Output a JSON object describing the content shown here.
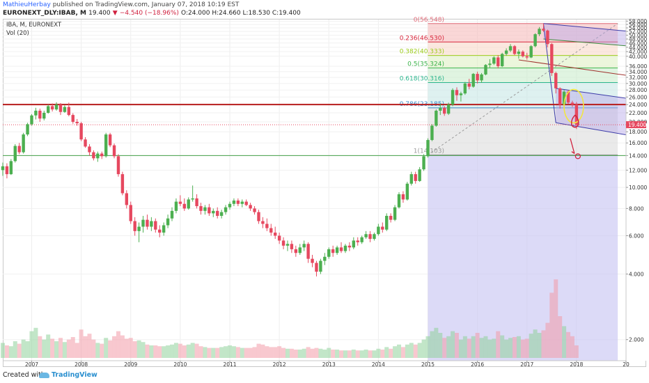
{
  "header": {
    "author": "MathieuHerbay",
    "published_text": "published on TradingView.com, January 07, 2018 10:19 EST",
    "symbol": "EURONEXT_DLY:IBAB, M",
    "last": "19.400",
    "change_arrow": "▼",
    "change": "−4.540 (−18.96%)",
    "ohlc": "O:24.000 H:24.660 L:18.530 C:19.400"
  },
  "legend": {
    "title": "IBA, M, EURONEXT",
    "volume": "Vol (20)"
  },
  "footer": {
    "created_with": "Created with",
    "brand": "TradingView"
  },
  "colors": {
    "up": "#4caf50",
    "down": "#e6485f",
    "resistance": "#b71c1c",
    "support": "#43a047",
    "price_tag": "#e6485f",
    "annotation_yellow": "#f2e640",
    "annotation_red": "#d01f3c"
  },
  "chart_data": {
    "type": "candlestick",
    "title": "IBA, M, EURONEXT",
    "y_scale": "log",
    "ylim": [
      1.6,
      59
    ],
    "x_range": [
      "2006-06",
      "2019-01"
    ],
    "y_ticks": [
      "58.000",
      "56.000",
      "54.000",
      "52.000",
      "50.000",
      "48.000",
      "46.000",
      "44.000",
      "42.000",
      "40.000",
      "36.000",
      "34.000",
      "32.000",
      "30.000",
      "28.000",
      "26.000",
      "24.000",
      "22.000",
      "20.000",
      "18.000",
      "16.000",
      "14.000",
      "12.000",
      "10.000",
      "8.000",
      "6.000",
      "4.000",
      "2.000"
    ],
    "x_ticks": [
      "2007",
      "2008",
      "2009",
      "2010",
      "2011",
      "2012",
      "2013",
      "2014",
      "2015",
      "2016",
      "2017",
      "2018",
      "20"
    ],
    "last_price_label": "19.400",
    "horizontal_lines": [
      {
        "name": "resistance",
        "value": 24
      },
      {
        "name": "support",
        "value": 14
      },
      {
        "name": "last",
        "value": 19.4
      }
    ],
    "fibonacci": {
      "from": "2015-01",
      "to": "2018-11",
      "levels": [
        {
          "label": "0(56.548)",
          "value": 56.548,
          "color": "#e06b78"
        },
        {
          "label": "0.236(46.530)",
          "value": 46.53,
          "color": "#d9263c"
        },
        {
          "label": "0.382(40.333)",
          "value": 40.333,
          "color": "#9ccc1a"
        },
        {
          "label": "0.5(35.324)",
          "value": 35.324,
          "color": "#3bb34a"
        },
        {
          "label": "0.618(30.316)",
          "value": 30.316,
          "color": "#2bb58d"
        },
        {
          "label": "0.786(23.185)",
          "value": 23.185,
          "color": "#3a87c6"
        },
        {
          "label": "1(14.103)",
          "value": 14.103,
          "color": "#9a9a9a"
        }
      ]
    },
    "ohlc": [
      [
        "2006-06",
        12.0,
        13.0,
        11.3,
        12.5,
        1.8
      ],
      [
        "2006-07",
        12.5,
        12.9,
        11.0,
        11.5,
        1.5
      ],
      [
        "2006-08",
        11.5,
        13.5,
        11.4,
        13.2,
        1.4
      ],
      [
        "2006-09",
        13.2,
        15.8,
        13.0,
        15.5,
        2.0
      ],
      [
        "2006-10",
        15.5,
        16.0,
        14.2,
        14.5,
        1.7
      ],
      [
        "2006-11",
        14.5,
        17.8,
        14.3,
        17.5,
        2.2
      ],
      [
        "2006-12",
        17.5,
        19.8,
        17.2,
        19.5,
        2.0
      ],
      [
        "2007-01",
        19.5,
        21.7,
        19.2,
        21.4,
        3.2
      ],
      [
        "2007-02",
        21.4,
        23.2,
        20.5,
        22.5,
        3.6
      ],
      [
        "2007-03",
        22.5,
        23.0,
        20.0,
        20.7,
        2.6
      ],
      [
        "2007-04",
        20.7,
        22.5,
        20.3,
        22.0,
        2.2
      ],
      [
        "2007-05",
        22.0,
        24.0,
        21.8,
        23.6,
        2.8
      ],
      [
        "2007-06",
        23.6,
        24.3,
        22.3,
        22.8,
        2.3
      ],
      [
        "2007-07",
        22.8,
        24.6,
        22.5,
        24.0,
        2.0
      ],
      [
        "2007-08",
        24.0,
        24.4,
        21.5,
        22.2,
        2.4
      ],
      [
        "2007-09",
        22.2,
        23.8,
        22.0,
        23.4,
        1.9
      ],
      [
        "2007-10",
        23.4,
        24.5,
        21.2,
        21.5,
        2.2
      ],
      [
        "2007-11",
        21.5,
        21.9,
        19.6,
        20.0,
        2.5
      ],
      [
        "2007-12",
        20.0,
        20.6,
        19.2,
        19.7,
        1.8
      ],
      [
        "2008-01",
        19.7,
        20.0,
        16.3,
        16.6,
        3.4
      ],
      [
        "2008-02",
        16.6,
        17.0,
        15.2,
        15.4,
        2.6
      ],
      [
        "2008-03",
        15.4,
        15.8,
        14.0,
        14.5,
        2.9
      ],
      [
        "2008-04",
        14.5,
        14.8,
        13.3,
        13.6,
        2.2
      ],
      [
        "2008-05",
        13.6,
        14.6,
        13.1,
        14.3,
        1.8
      ],
      [
        "2008-06",
        14.3,
        14.6,
        13.5,
        13.9,
        1.7
      ],
      [
        "2008-07",
        13.9,
        17.8,
        13.7,
        17.5,
        2.4
      ],
      [
        "2008-08",
        17.5,
        17.8,
        15.3,
        15.6,
        2.1
      ],
      [
        "2008-09",
        15.6,
        15.9,
        13.6,
        13.9,
        2.6
      ],
      [
        "2008-10",
        13.9,
        14.2,
        11.2,
        11.5,
        3.2
      ],
      [
        "2008-11",
        11.5,
        11.8,
        9.2,
        9.4,
        2.7
      ],
      [
        "2008-12",
        9.4,
        9.7,
        8.0,
        8.3,
        2.3
      ],
      [
        "2009-01",
        8.3,
        8.6,
        6.8,
        7.0,
        2.4
      ],
      [
        "2009-02",
        7.0,
        7.3,
        6.0,
        6.3,
        2.0
      ],
      [
        "2009-03",
        6.3,
        6.9,
        5.6,
        6.6,
        2.1
      ],
      [
        "2009-04",
        6.6,
        7.4,
        6.2,
        7.1,
        1.9
      ],
      [
        "2009-05",
        7.1,
        7.5,
        6.4,
        6.6,
        1.6
      ],
      [
        "2009-06",
        6.6,
        7.3,
        6.3,
        7.0,
        1.5
      ],
      [
        "2009-07",
        7.0,
        7.2,
        6.2,
        6.4,
        1.5
      ],
      [
        "2009-08",
        6.4,
        6.7,
        5.9,
        6.2,
        1.4
      ],
      [
        "2009-09",
        6.2,
        6.9,
        6.0,
        6.7,
        1.4
      ],
      [
        "2009-10",
        6.7,
        7.5,
        6.5,
        7.2,
        1.5
      ],
      [
        "2009-11",
        7.2,
        8.1,
        7.0,
        7.8,
        1.6
      ],
      [
        "2009-12",
        7.8,
        8.9,
        7.6,
        8.6,
        1.8
      ],
      [
        "2010-01",
        8.6,
        9.2,
        8.2,
        8.4,
        1.7
      ],
      [
        "2010-02",
        8.4,
        8.9,
        7.8,
        8.0,
        1.5
      ],
      [
        "2010-03",
        8.0,
        9.0,
        7.9,
        8.8,
        1.6
      ],
      [
        "2010-04",
        8.8,
        10.2,
        8.6,
        8.9,
        1.8
      ],
      [
        "2010-05",
        8.9,
        9.3,
        8.0,
        8.2,
        1.7
      ],
      [
        "2010-06",
        8.2,
        8.5,
        7.5,
        7.8,
        1.4
      ],
      [
        "2010-07",
        7.8,
        8.3,
        7.5,
        8.1,
        1.3
      ],
      [
        "2010-08",
        8.1,
        8.4,
        7.4,
        7.6,
        1.2
      ],
      [
        "2010-09",
        7.6,
        8.0,
        7.3,
        7.8,
        1.2
      ],
      [
        "2010-10",
        7.8,
        8.1,
        7.2,
        7.4,
        1.2
      ],
      [
        "2010-11",
        7.4,
        7.9,
        7.2,
        7.7,
        1.3
      ],
      [
        "2010-12",
        7.7,
        8.3,
        7.5,
        8.1,
        1.4
      ],
      [
        "2011-01",
        8.1,
        8.6,
        7.9,
        8.4,
        1.5
      ],
      [
        "2011-02",
        8.4,
        8.9,
        8.2,
        8.7,
        1.4
      ],
      [
        "2011-03",
        8.7,
        8.9,
        8.2,
        8.4,
        1.3
      ],
      [
        "2011-04",
        8.4,
        8.8,
        8.1,
        8.6,
        1.2
      ],
      [
        "2011-05",
        8.6,
        8.8,
        8.2,
        8.3,
        1.2
      ],
      [
        "2011-06",
        8.3,
        8.5,
        7.8,
        8.0,
        1.2
      ],
      [
        "2011-07",
        8.0,
        8.2,
        7.5,
        7.7,
        1.3
      ],
      [
        "2011-08",
        7.7,
        7.9,
        6.8,
        7.0,
        1.7
      ],
      [
        "2011-09",
        7.0,
        7.3,
        6.5,
        6.8,
        1.6
      ],
      [
        "2011-10",
        6.8,
        7.2,
        6.3,
        6.5,
        1.4
      ],
      [
        "2011-11",
        6.5,
        6.8,
        6.0,
        6.2,
        1.3
      ],
      [
        "2011-12",
        6.2,
        6.6,
        5.8,
        6.0,
        1.3
      ],
      [
        "2012-01",
        6.0,
        6.2,
        5.5,
        5.7,
        1.4
      ],
      [
        "2012-02",
        5.7,
        5.9,
        5.2,
        5.4,
        1.2
      ],
      [
        "2012-03",
        5.4,
        5.7,
        5.1,
        5.5,
        1.1
      ],
      [
        "2012-04",
        5.5,
        5.7,
        5.0,
        5.2,
        1.1
      ],
      [
        "2012-05",
        5.2,
        5.4,
        4.8,
        5.0,
        1.0
      ],
      [
        "2012-06",
        5.0,
        5.5,
        4.9,
        5.3,
        1.0
      ],
      [
        "2012-07",
        5.3,
        5.7,
        5.1,
        5.5,
        1.1
      ],
      [
        "2012-08",
        5.5,
        5.6,
        4.5,
        4.7,
        1.3
      ],
      [
        "2012-09",
        4.7,
        4.9,
        4.3,
        4.5,
        1.1
      ],
      [
        "2012-10",
        4.5,
        4.6,
        3.9,
        4.1,
        1.2
      ],
      [
        "2012-11",
        4.1,
        4.7,
        4.0,
        4.6,
        1.1
      ],
      [
        "2012-12",
        4.6,
        5.0,
        4.4,
        4.8,
        1.0
      ],
      [
        "2013-01",
        4.8,
        5.3,
        4.7,
        5.2,
        1.2
      ],
      [
        "2013-02",
        5.2,
        5.4,
        4.8,
        5.0,
        1.0
      ],
      [
        "2013-03",
        5.0,
        5.4,
        4.9,
        5.3,
        1.0
      ],
      [
        "2013-04",
        5.3,
        5.6,
        5.0,
        5.1,
        0.9
      ],
      [
        "2013-05",
        5.1,
        5.5,
        5.0,
        5.4,
        0.9
      ],
      [
        "2013-06",
        5.4,
        5.6,
        5.1,
        5.3,
        0.9
      ],
      [
        "2013-07",
        5.3,
        5.9,
        5.2,
        5.7,
        1.0
      ],
      [
        "2013-08",
        5.7,
        5.9,
        5.4,
        5.6,
        0.9
      ],
      [
        "2013-09",
        5.6,
        6.0,
        5.5,
        5.9,
        0.9
      ],
      [
        "2013-10",
        5.9,
        6.3,
        5.8,
        6.1,
        1.0
      ],
      [
        "2013-11",
        6.1,
        6.3,
        5.6,
        5.8,
        0.9
      ],
      [
        "2013-12",
        5.8,
        6.2,
        5.7,
        6.1,
        0.9
      ],
      [
        "2014-01",
        6.1,
        6.8,
        6.0,
        6.6,
        1.1
      ],
      [
        "2014-02",
        6.6,
        6.9,
        6.2,
        6.4,
        1.0
      ],
      [
        "2014-03",
        6.4,
        7.6,
        6.3,
        7.4,
        1.3
      ],
      [
        "2014-04",
        7.4,
        7.6,
        6.9,
        7.1,
        1.1
      ],
      [
        "2014-05",
        7.1,
        8.3,
        7.0,
        8.1,
        1.4
      ],
      [
        "2014-06",
        8.1,
        9.5,
        8.0,
        9.3,
        1.6
      ],
      [
        "2014-07",
        9.3,
        9.6,
        8.5,
        8.8,
        1.3
      ],
      [
        "2014-08",
        8.8,
        10.6,
        8.7,
        10.4,
        1.6
      ],
      [
        "2014-09",
        10.4,
        11.8,
        10.2,
        11.5,
        1.8
      ],
      [
        "2014-10",
        11.5,
        11.8,
        10.4,
        10.7,
        1.6
      ],
      [
        "2014-11",
        10.7,
        12.4,
        10.6,
        12.1,
        1.8
      ],
      [
        "2014-12",
        12.1,
        14.2,
        11.9,
        13.9,
        2.2
      ],
      [
        "2015-01",
        13.9,
        16.8,
        13.7,
        16.5,
        2.6
      ],
      [
        "2015-02",
        16.5,
        19.5,
        16.3,
        19.2,
        3.2
      ],
      [
        "2015-03",
        19.2,
        22.8,
        19.0,
        22.5,
        3.6
      ],
      [
        "2015-04",
        22.5,
        24.2,
        21.5,
        23.2,
        3.0
      ],
      [
        "2015-05",
        23.2,
        23.6,
        21.3,
        21.8,
        2.4
      ],
      [
        "2015-06",
        21.8,
        24.5,
        21.5,
        24.0,
        2.6
      ],
      [
        "2015-07",
        24.0,
        28.5,
        23.6,
        28.0,
        3.2
      ],
      [
        "2015-08",
        28.0,
        28.8,
        25.0,
        26.5,
        3.0
      ],
      [
        "2015-09",
        26.5,
        27.5,
        24.8,
        27.0,
        2.2
      ],
      [
        "2015-10",
        27.0,
        30.5,
        26.6,
        30.0,
        2.6
      ],
      [
        "2015-11",
        30.0,
        31.5,
        28.2,
        29.0,
        2.3
      ],
      [
        "2015-12",
        29.0,
        33.5,
        28.7,
        33.2,
        2.6
      ],
      [
        "2016-01",
        33.2,
        34.0,
        30.0,
        31.0,
        3.0
      ],
      [
        "2016-02",
        31.0,
        33.5,
        30.2,
        33.0,
        2.4
      ],
      [
        "2016-03",
        33.0,
        36.8,
        32.7,
        36.5,
        2.6
      ],
      [
        "2016-04",
        36.5,
        38.8,
        35.5,
        37.0,
        2.2
      ],
      [
        "2016-05",
        37.0,
        40.0,
        36.5,
        39.5,
        2.3
      ],
      [
        "2016-06",
        39.5,
        40.5,
        35.2,
        36.0,
        3.2
      ],
      [
        "2016-07",
        36.0,
        41.5,
        35.7,
        41.0,
        2.7
      ],
      [
        "2016-08",
        41.0,
        43.5,
        40.2,
        42.5,
        2.2
      ],
      [
        "2016-09",
        42.5,
        45.5,
        41.8,
        44.5,
        2.4
      ],
      [
        "2016-10",
        44.5,
        45.0,
        40.5,
        41.0,
        2.5
      ],
      [
        "2016-11",
        41.0,
        43.0,
        39.0,
        42.0,
        2.6
      ],
      [
        "2016-12",
        42.0,
        42.6,
        39.5,
        40.0,
        2.2
      ],
      [
        "2017-01",
        40.0,
        41.5,
        38.6,
        39.5,
        2.3
      ],
      [
        "2017-02",
        39.5,
        45.0,
        39.2,
        44.5,
        2.9
      ],
      [
        "2017-03",
        44.5,
        51.0,
        44.0,
        50.5,
        3.4
      ],
      [
        "2017-04",
        50.5,
        54.5,
        49.5,
        53.5,
        3.0
      ],
      [
        "2017-05",
        53.5,
        56.5,
        51.8,
        52.5,
        3.3
      ],
      [
        "2017-06",
        52.5,
        53.0,
        44.0,
        45.5,
        4.2
      ],
      [
        "2017-07",
        45.5,
        46.0,
        32.5,
        33.5,
        7.8
      ],
      [
        "2017-08",
        33.5,
        34.0,
        27.0,
        28.5,
        9.4
      ],
      [
        "2017-09",
        28.5,
        28.8,
        23.0,
        24.0,
        5.0
      ],
      [
        "2017-10",
        24.0,
        28.0,
        23.5,
        27.5,
        3.8
      ],
      [
        "2017-11",
        27.5,
        28.0,
        24.2,
        24.5,
        3.1
      ],
      [
        "2017-12",
        24.5,
        25.0,
        23.4,
        24.0,
        2.6
      ],
      [
        "2018-01",
        24.0,
        24.66,
        18.53,
        19.4,
        1.5
      ]
    ]
  }
}
